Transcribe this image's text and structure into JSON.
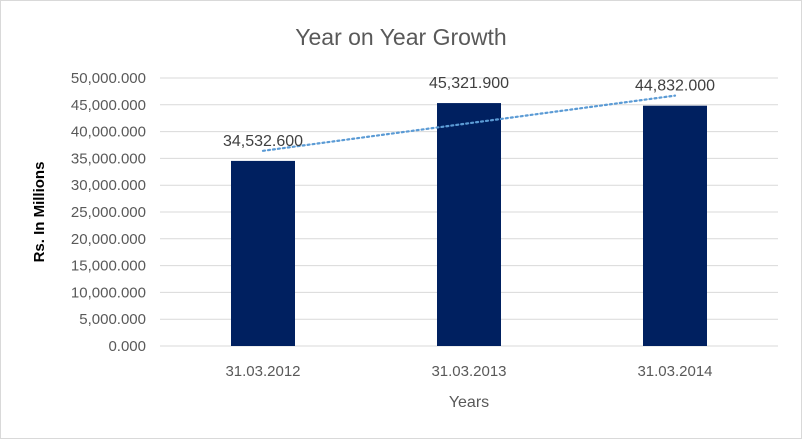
{
  "chart_data": {
    "type": "bar",
    "title": "Year on Year Growth",
    "xlabel": "Years",
    "ylabel": "Rs. In Millions",
    "categories": [
      "31.03.2012",
      "31.03.2013",
      "31.03.2014"
    ],
    "series": [
      {
        "values": [
          34532.6,
          45321.9,
          44832.0
        ],
        "labels": [
          "34,532.600",
          "45,321.900",
          "44,832.000"
        ],
        "color": "#002060"
      }
    ],
    "trendline": {
      "type": "linear",
      "style": "dotted",
      "color": "#5b9bd5"
    },
    "ylim": [
      0,
      50000
    ],
    "yticks": [
      0,
      5000,
      10000,
      15000,
      20000,
      25000,
      30000,
      35000,
      40000,
      45000,
      50000
    ],
    "ytick_labels": [
      "0.000",
      "5,000.000",
      "10,000.000",
      "15,000.000",
      "20,000.000",
      "25,000.000",
      "30,000.000",
      "35,000.000",
      "40,000.000",
      "45,000.000",
      "50,000.000"
    ],
    "grid": true,
    "legend": "none"
  }
}
